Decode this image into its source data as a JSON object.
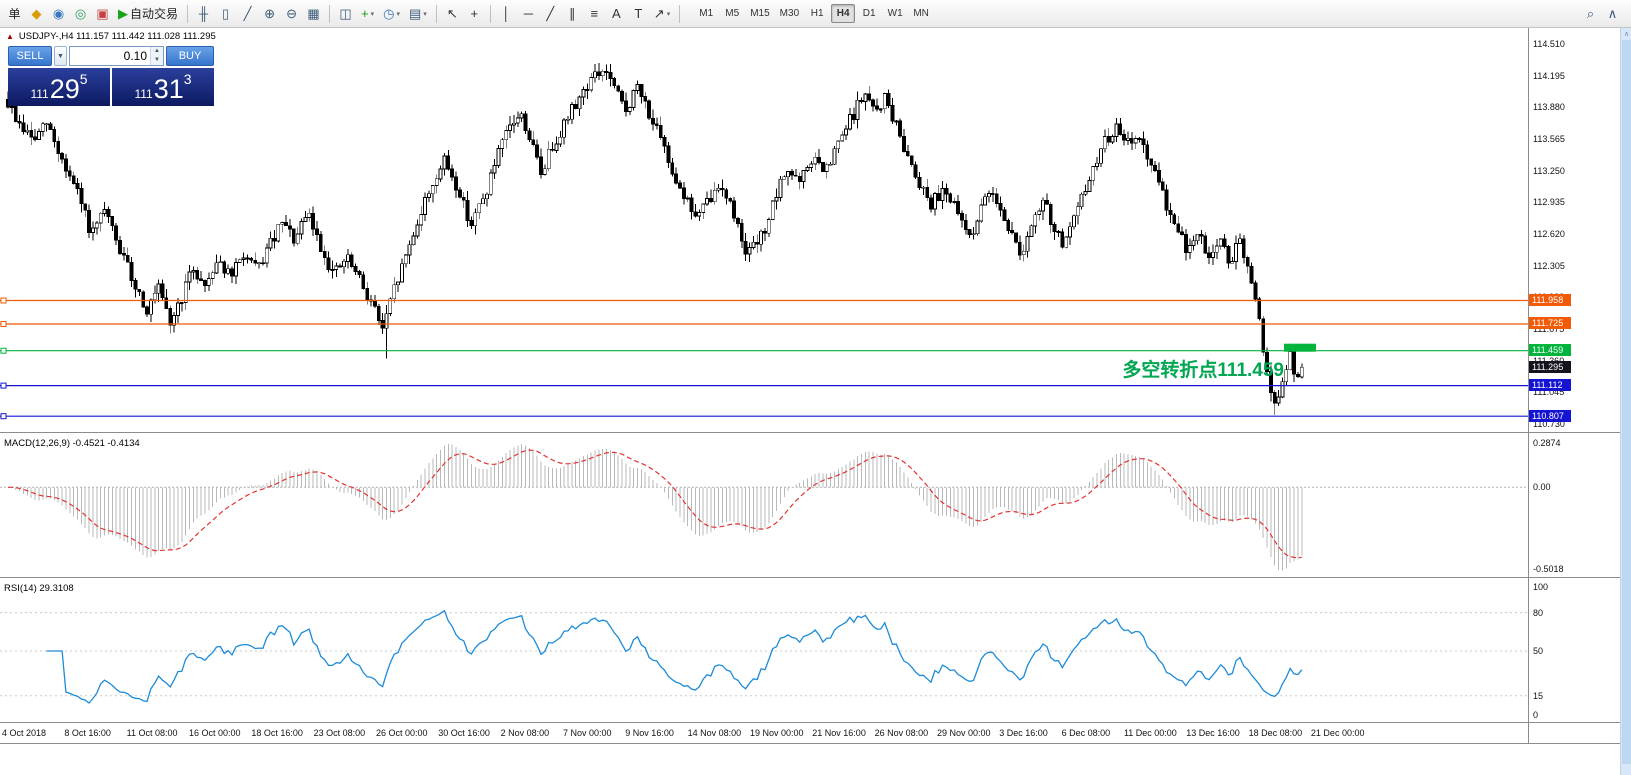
{
  "toolbar": {
    "items": [
      {
        "kind": "button",
        "name": "order-menu-button",
        "label": "单"
      },
      {
        "kind": "button",
        "name": "market-watch-icon",
        "glyph": "◆",
        "color": "#d99b00"
      },
      {
        "kind": "button",
        "name": "data-window-icon",
        "glyph": "◉",
        "color": "#3a78c2"
      },
      {
        "kind": "button",
        "name": "navigator-icon",
        "glyph": "◎",
        "color": "#2e9e5b"
      },
      {
        "kind": "button",
        "name": "terminal-icon",
        "glyph": "▣",
        "color": "#c24040"
      },
      {
        "kind": "button",
        "name": "autotrade-button",
        "glyph": "▶",
        "color": "#17a317",
        "label": "自动交易"
      },
      {
        "kind": "sep"
      },
      {
        "kind": "button",
        "name": "ohlc-bars-icon",
        "glyph": "╫",
        "color": "#3c5a78"
      },
      {
        "kind": "button",
        "name": "candlestick-icon",
        "glyph": "▯",
        "color": "#3c5a78"
      },
      {
        "kind": "button",
        "name": "line-chart-icon",
        "glyph": "╱",
        "color": "#3c5a78"
      },
      {
        "kind": "button",
        "name": "zoom-in-icon",
        "glyph": "⊕",
        "color": "#3c5a78"
      },
      {
        "kind": "button",
        "name": "zoom-out-icon",
        "glyph": "⊖",
        "color": "#3c5a78"
      },
      {
        "kind": "button",
        "name": "chart-grid-icon",
        "glyph": "▦",
        "color": "#3c5a78"
      },
      {
        "kind": "sep"
      },
      {
        "kind": "button",
        "name": "tile-windows-icon",
        "glyph": "◫",
        "color": "#3c5a78"
      },
      {
        "kind": "button",
        "name": "add-indicator-icon",
        "glyph": "+",
        "color": "#18a018",
        "caret": true
      },
      {
        "kind": "button",
        "name": "period-clock-icon",
        "glyph": "◷",
        "color": "#3a78c2",
        "caret": true
      },
      {
        "kind": "button",
        "name": "template-icon",
        "glyph": "▤",
        "color": "#3c5a78",
        "caret": true
      },
      {
        "kind": "sep"
      },
      {
        "kind": "button",
        "name": "cursor-icon",
        "glyph": "↖",
        "color": "#333"
      },
      {
        "kind": "button",
        "name": "crosshair-icon",
        "glyph": "+",
        "color": "#333"
      },
      {
        "kind": "sep"
      },
      {
        "kind": "button",
        "name": "vertical-line-icon",
        "glyph": "│",
        "color": "#333"
      },
      {
        "kind": "button",
        "name": "horizontal-line-icon",
        "glyph": "─",
        "color": "#333"
      },
      {
        "kind": "button",
        "name": "trendline-icon",
        "glyph": "╱",
        "color": "#333"
      },
      {
        "kind": "button",
        "name": "channel-icon",
        "glyph": "∥",
        "color": "#333"
      },
      {
        "kind": "button",
        "name": "fibonacci-icon",
        "glyph": "≡",
        "color": "#333"
      },
      {
        "kind": "button",
        "name": "text-icon",
        "glyph": "A",
        "color": "#333"
      },
      {
        "kind": "button",
        "name": "label-icon",
        "glyph": "T",
        "color": "#333"
      },
      {
        "kind": "button",
        "name": "shapes-icon",
        "glyph": "↗",
        "color": "#333",
        "caret": true
      },
      {
        "kind": "sep"
      }
    ],
    "timeframes": [
      "M1",
      "M5",
      "M15",
      "M30",
      "H1",
      "H4",
      "D1",
      "W1",
      "MN"
    ],
    "active_timeframe": "H4",
    "right_items": [
      {
        "name": "symbol-search-icon",
        "glyph": "⌕",
        "color": "#3c5a78"
      },
      {
        "name": "collapse-toolbar-icon",
        "glyph": "∧",
        "color": "#3c5a78"
      }
    ]
  },
  "trade_panel": {
    "sell_label": "SELL",
    "buy_label": "BUY",
    "volume": "0.10",
    "bid_main": "111",
    "bid_pips": "29",
    "bid_frac": "5",
    "ask_main": "111",
    "ask_pips": "31",
    "ask_frac": "3"
  },
  "chart": {
    "title": "USDJPY-,H4 111.157 111.442 111.028 111.295",
    "annotation": "多空转折点111.459"
  },
  "chart_data": {
    "type": "candlestick",
    "symbol": "USDJPY-",
    "timeframe": "H4",
    "ohlc_display": {
      "open": 111.157,
      "high": 111.442,
      "low": 111.028,
      "close": 111.295
    },
    "current_price": 111.295,
    "colors": {
      "orange": "#f25a05",
      "green": "#00b43c",
      "blue": "#1414d2",
      "current": "#14141e",
      "rsi_line": "#1d8bd8",
      "macd_signal": "#e23434",
      "macd_hist": "#b9b9b9"
    },
    "price_axis": {
      "labels": [
        "114.510",
        "114.195",
        "113.880",
        "113.565",
        "113.250",
        "112.935",
        "112.620",
        "112.305",
        "111.990",
        "111.675",
        "111.360",
        "111.045",
        "110.730"
      ],
      "max": 114.669,
      "min": 110.65
    },
    "hlines": [
      {
        "price": 111.958,
        "color_key": "orange"
      },
      {
        "price": 111.725,
        "color_key": "orange"
      },
      {
        "price": 111.459,
        "color_key": "green"
      },
      {
        "price": 111.112,
        "color_key": "blue"
      },
      {
        "price": 110.807,
        "color_key": "blue"
      }
    ],
    "price_tags": [
      {
        "label": "111.958",
        "price": 111.958,
        "color_key": "orange"
      },
      {
        "label": "111.725",
        "price": 111.725,
        "color_key": "orange"
      },
      {
        "label": "111.459",
        "price": 111.459,
        "color_key": "green"
      },
      {
        "label": "111.295",
        "price": 111.295,
        "color_key": "current",
        "current": true
      },
      {
        "label": "111.112",
        "price": 111.112,
        "color_key": "blue"
      },
      {
        "label": "110.807",
        "price": 110.807,
        "color_key": "blue"
      }
    ],
    "highlight_box": {
      "price": 111.459
    },
    "annotation": {
      "text": "多空转折点111.459",
      "color": "#00a651"
    },
    "candles": {
      "count": 336,
      "anchors": [
        [
          0,
          113.92
        ],
        [
          0.008,
          113.72
        ],
        [
          0.02,
          113.55
        ],
        [
          0.03,
          113.72
        ],
        [
          0.042,
          113.35
        ],
        [
          0.055,
          112.98
        ],
        [
          0.065,
          112.6
        ],
        [
          0.075,
          112.85
        ],
        [
          0.085,
          112.5
        ],
        [
          0.097,
          112.15
        ],
        [
          0.108,
          111.85
        ],
        [
          0.116,
          112.08
        ],
        [
          0.125,
          111.72
        ],
        [
          0.133,
          111.95
        ],
        [
          0.143,
          112.28
        ],
        [
          0.152,
          112.1
        ],
        [
          0.162,
          112.38
        ],
        [
          0.172,
          112.18
        ],
        [
          0.182,
          112.42
        ],
        [
          0.192,
          112.25
        ],
        [
          0.202,
          112.5
        ],
        [
          0.212,
          112.72
        ],
        [
          0.222,
          112.55
        ],
        [
          0.232,
          112.82
        ],
        [
          0.242,
          112.48
        ],
        [
          0.252,
          112.22
        ],
        [
          0.262,
          112.38
        ],
        [
          0.272,
          112.15
        ],
        [
          0.282,
          111.92
        ],
        [
          0.29,
          111.66
        ],
        [
          0.298,
          112.05
        ],
        [
          0.308,
          112.42
        ],
        [
          0.318,
          112.8
        ],
        [
          0.328,
          113.12
        ],
        [
          0.338,
          113.35
        ],
        [
          0.348,
          113.05
        ],
        [
          0.358,
          112.72
        ],
        [
          0.368,
          112.98
        ],
        [
          0.378,
          113.38
        ],
        [
          0.388,
          113.68
        ],
        [
          0.396,
          113.82
        ],
        [
          0.404,
          113.55
        ],
        [
          0.412,
          113.22
        ],
        [
          0.42,
          113.48
        ],
        [
          0.43,
          113.72
        ],
        [
          0.44,
          113.95
        ],
        [
          0.452,
          114.18
        ],
        [
          0.462,
          114.25
        ],
        [
          0.47,
          114.02
        ],
        [
          0.478,
          113.85
        ],
        [
          0.486,
          114.08
        ],
        [
          0.494,
          113.88
        ],
        [
          0.502,
          113.62
        ],
        [
          0.512,
          113.3
        ],
        [
          0.522,
          113.02
        ],
        [
          0.532,
          112.78
        ],
        [
          0.542,
          112.95
        ],
        [
          0.552,
          113.12
        ],
        [
          0.562,
          112.78
        ],
        [
          0.572,
          112.42
        ],
        [
          0.582,
          112.58
        ],
        [
          0.592,
          112.92
        ],
        [
          0.602,
          113.28
        ],
        [
          0.612,
          113.12
        ],
        [
          0.622,
          113.38
        ],
        [
          0.632,
          113.22
        ],
        [
          0.642,
          113.52
        ],
        [
          0.652,
          113.78
        ],
        [
          0.662,
          114.02
        ],
        [
          0.67,
          113.82
        ],
        [
          0.678,
          113.98
        ],
        [
          0.686,
          113.7
        ],
        [
          0.694,
          113.45
        ],
        [
          0.704,
          113.15
        ],
        [
          0.714,
          112.92
        ],
        [
          0.724,
          113.1
        ],
        [
          0.734,
          112.8
        ],
        [
          0.744,
          112.6
        ],
        [
          0.752,
          112.85
        ],
        [
          0.76,
          113.1
        ],
        [
          0.768,
          112.85
        ],
        [
          0.776,
          112.6
        ],
        [
          0.784,
          112.42
        ],
        [
          0.792,
          112.7
        ],
        [
          0.8,
          112.95
        ],
        [
          0.808,
          112.7
        ],
        [
          0.816,
          112.5
        ],
        [
          0.824,
          112.75
        ],
        [
          0.832,
          113.05
        ],
        [
          0.84,
          113.3
        ],
        [
          0.848,
          113.55
        ],
        [
          0.856,
          113.68
        ],
        [
          0.864,
          113.5
        ],
        [
          0.872,
          113.62
        ],
        [
          0.88,
          113.4
        ],
        [
          0.888,
          113.15
        ],
        [
          0.896,
          112.9
        ],
        [
          0.904,
          112.65
        ],
        [
          0.912,
          112.45
        ],
        [
          0.92,
          112.62
        ],
        [
          0.928,
          112.4
        ],
        [
          0.936,
          112.55
        ],
        [
          0.944,
          112.35
        ],
        [
          0.952,
          112.52
        ],
        [
          0.958,
          112.3
        ],
        [
          0.964,
          111.95
        ],
        [
          0.97,
          111.5
        ],
        [
          0.976,
          111.02
        ],
        [
          0.981,
          110.9
        ],
        [
          0.986,
          111.18
        ],
        [
          0.991,
          111.42
        ],
        [
          0.996,
          111.12
        ],
        [
          1,
          111.295
        ]
      ]
    },
    "macd": {
      "display": "MACD(12,26,9) -0.4521 -0.4134",
      "params": [
        12,
        26,
        9
      ],
      "value": -0.4521,
      "signal_value": -0.4134,
      "scale_labels": [
        "0.2874",
        "0.00",
        "-0.5018"
      ]
    },
    "rsi": {
      "display": "RSI(14) 29.3108",
      "period": 14,
      "value": 29.3108,
      "scale_labels": [
        "100",
        "80",
        "50",
        "15",
        "0"
      ],
      "levels": [
        80,
        50,
        15
      ]
    },
    "time_axis": [
      "4 Oct 2018",
      "8 Oct 16:00",
      "11 Oct 08:00",
      "16 Oct 00:00",
      "18 Oct 16:00",
      "23 Oct 08:00",
      "26 Oct 00:00",
      "30 Oct 16:00",
      "2 Nov 08:00",
      "7 Nov 00:00",
      "9 Nov 16:00",
      "14 Nov 08:00",
      "19 Nov 00:00",
      "21 Nov 16:00",
      "26 Nov 08:00",
      "29 Nov 00:00",
      "3 Dec 16:00",
      "6 Dec 08:00",
      "11 Dec 00:00",
      "13 Dec 16:00",
      "18 Dec 08:00",
      "21 Dec 00:00"
    ]
  }
}
